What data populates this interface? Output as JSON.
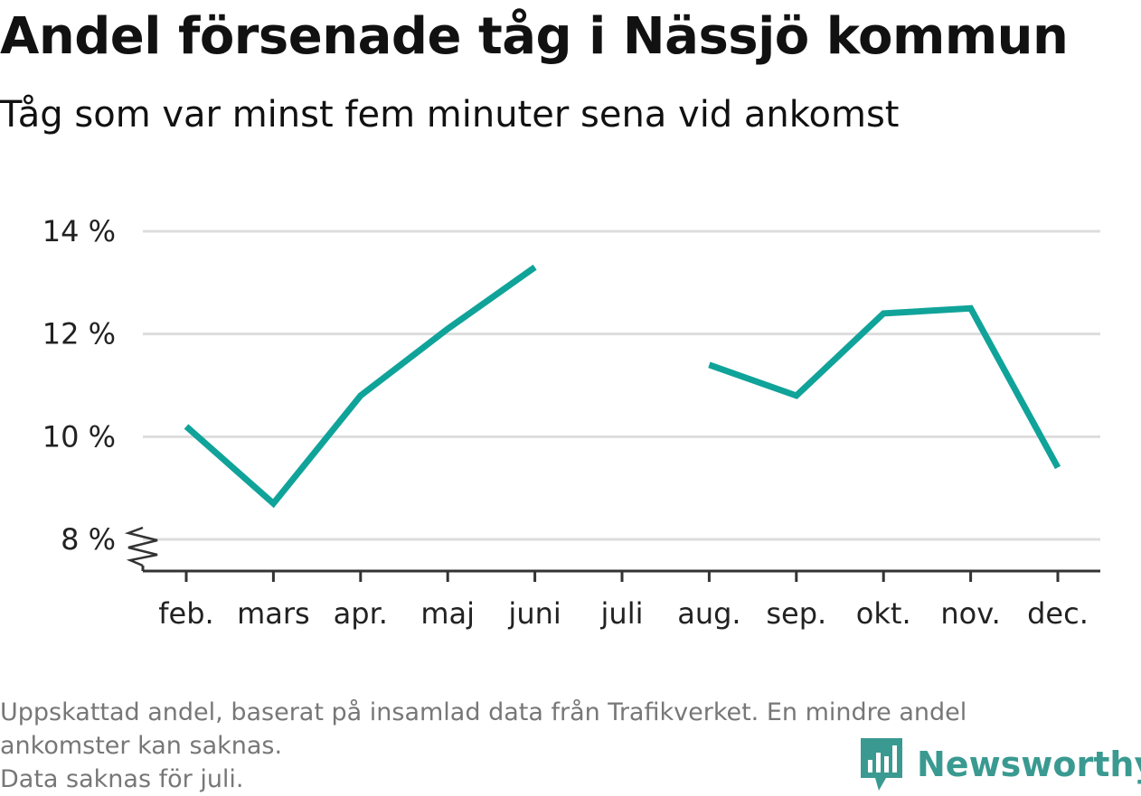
{
  "title": "Andel försenade tåg i Nässjö kommun",
  "subtitle": "Tåg som var minst fem minuter sena vid ankomst",
  "footer": {
    "line1": "Uppskattad andel, baserat på insamlad data från Trafikverket. En mindre andel",
    "line2": "ankomster kan saknas.",
    "line3": "Data saknas för juli."
  },
  "logo": {
    "text": "Newsworthy",
    "icon": "newsworthy-logo-icon"
  },
  "colors": {
    "line": "#10a39a",
    "grid": "#dddddd",
    "axis": "#333333",
    "logo": "#3a9a91"
  },
  "chart_data": {
    "type": "line",
    "categories": [
      "feb.",
      "mars",
      "apr.",
      "maj",
      "juni",
      "juli",
      "aug.",
      "sep.",
      "okt.",
      "nov.",
      "dec."
    ],
    "series": [
      {
        "values": [
          10.2,
          8.7,
          10.8,
          12.1,
          13.3,
          null,
          11.4,
          10.8,
          12.4,
          12.5,
          9.4
        ]
      }
    ],
    "y_ticks": [
      8,
      10,
      12,
      14
    ],
    "y_tick_labels": [
      "8 %",
      "10 %",
      "12 %",
      "14 %"
    ],
    "ylim": [
      8,
      14
    ],
    "y_axis_break": true,
    "grid": true
  }
}
